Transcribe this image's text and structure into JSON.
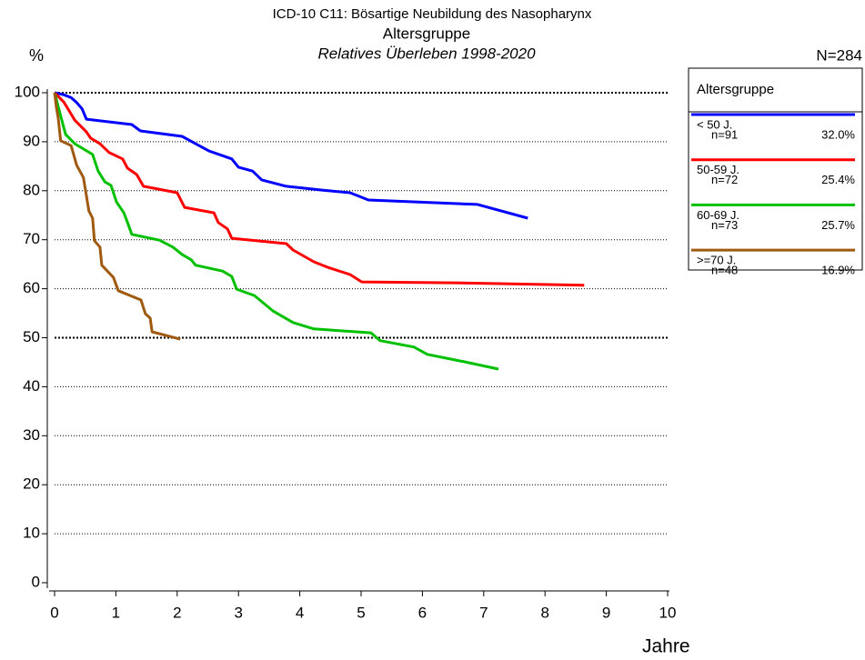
{
  "chart_data": {
    "type": "line",
    "title": "ICD-10 C11: Bösartige Neubildung des Nasopharynx",
    "subtitle": "Altersgruppe",
    "subtitle2": "Relatives Überleben 1998-2020",
    "y_label": "%",
    "x_label": "Jahre",
    "total_label": "N=284",
    "legend_title": "Altersgruppe",
    "legend_position": "right",
    "grid": true,
    "bold_grid_values": [
      50,
      100
    ],
    "xlim": [
      0,
      10
    ],
    "xticks": [
      0,
      1,
      2,
      3,
      4,
      5,
      6,
      7,
      8,
      9,
      10
    ],
    "ylim": [
      0,
      100
    ],
    "yticks": [
      0,
      10,
      20,
      30,
      40,
      50,
      60,
      70,
      80,
      90,
      100
    ],
    "series": [
      {
        "name": "< 50 J.",
        "n_label": "n=91",
        "share_label": "32.0%",
        "color": "#0000ff",
        "x": [
          0,
          0.15,
          0.27,
          0.36,
          0.45,
          0.52,
          1.26,
          1.4,
          2.08,
          2.3,
          2.52,
          2.89,
          3.0,
          3.23,
          3.38,
          3.78,
          4.38,
          4.82,
          5.12,
          6.9,
          7.72
        ],
        "values": [
          100,
          99.6,
          99,
          98,
          96.7,
          94.6,
          93.5,
          92.2,
          91.1,
          89.6,
          88.1,
          86.5,
          84.8,
          84,
          82.2,
          80.9,
          80.1,
          79.6,
          78.1,
          77.2,
          74.4
        ]
      },
      {
        "name": "50-59 J.",
        "n_label": "n=72",
        "share_label": "25.4%",
        "color": "#ff0000",
        "x": [
          0,
          0.15,
          0.22,
          0.33,
          0.52,
          0.59,
          0.74,
          0.89,
          1.11,
          1.19,
          1.34,
          1.45,
          2.0,
          2.12,
          2.6,
          2.67,
          2.82,
          2.89,
          3.78,
          3.89,
          4.23,
          4.45,
          4.82,
          5.01,
          6.53,
          8.64
        ],
        "values": [
          100,
          98.1,
          96.7,
          94.4,
          92,
          90.7,
          89.6,
          87.8,
          86.5,
          84.6,
          83.3,
          80.9,
          79.6,
          76.6,
          75.5,
          73.5,
          72.2,
          70.3,
          69.2,
          67.9,
          65.5,
          64.4,
          62.9,
          61.4,
          61.2,
          60.7
        ]
      },
      {
        "name": "60-69 J.",
        "n_label": "n=73",
        "share_label": "25.7%",
        "color": "#00c000",
        "x": [
          0,
          0.09,
          0.18,
          0.33,
          0.62,
          0.71,
          0.82,
          0.92,
          1.01,
          1.13,
          1.19,
          1.26,
          1.71,
          1.93,
          2.08,
          2.23,
          2.3,
          2.74,
          2.89,
          2.97,
          3.26,
          3.56,
          3.89,
          4.23,
          5.16,
          5.31,
          5.86,
          6.08,
          6.68,
          7.24
        ],
        "values": [
          100,
          95.7,
          91.5,
          89.6,
          87.4,
          84,
          81.8,
          81.1,
          77.7,
          75.5,
          73.5,
          71.1,
          69.9,
          68.5,
          67,
          65.9,
          64.8,
          63.6,
          62.5,
          59.9,
          58.6,
          55.5,
          53.1,
          51.8,
          51,
          49.4,
          48.1,
          46.6,
          45.1,
          43.6
        ]
      },
      {
        "name": ">=70 J.",
        "n_label": "n=48",
        "share_label": "16.9%",
        "color": "#a05a10",
        "x": [
          0,
          0.03,
          0.06,
          0.1,
          0.27,
          0.36,
          0.47,
          0.56,
          0.62,
          0.65,
          0.74,
          0.77,
          0.96,
          1.04,
          1.41,
          1.48,
          1.56,
          1.59,
          2.05
        ],
        "values": [
          100,
          97,
          94.8,
          90.2,
          89.2,
          85.2,
          82.7,
          75.9,
          74.4,
          69.8,
          68.5,
          64.8,
          62.3,
          59.6,
          57.7,
          54.9,
          54,
          51.2,
          49.7
        ]
      }
    ]
  }
}
